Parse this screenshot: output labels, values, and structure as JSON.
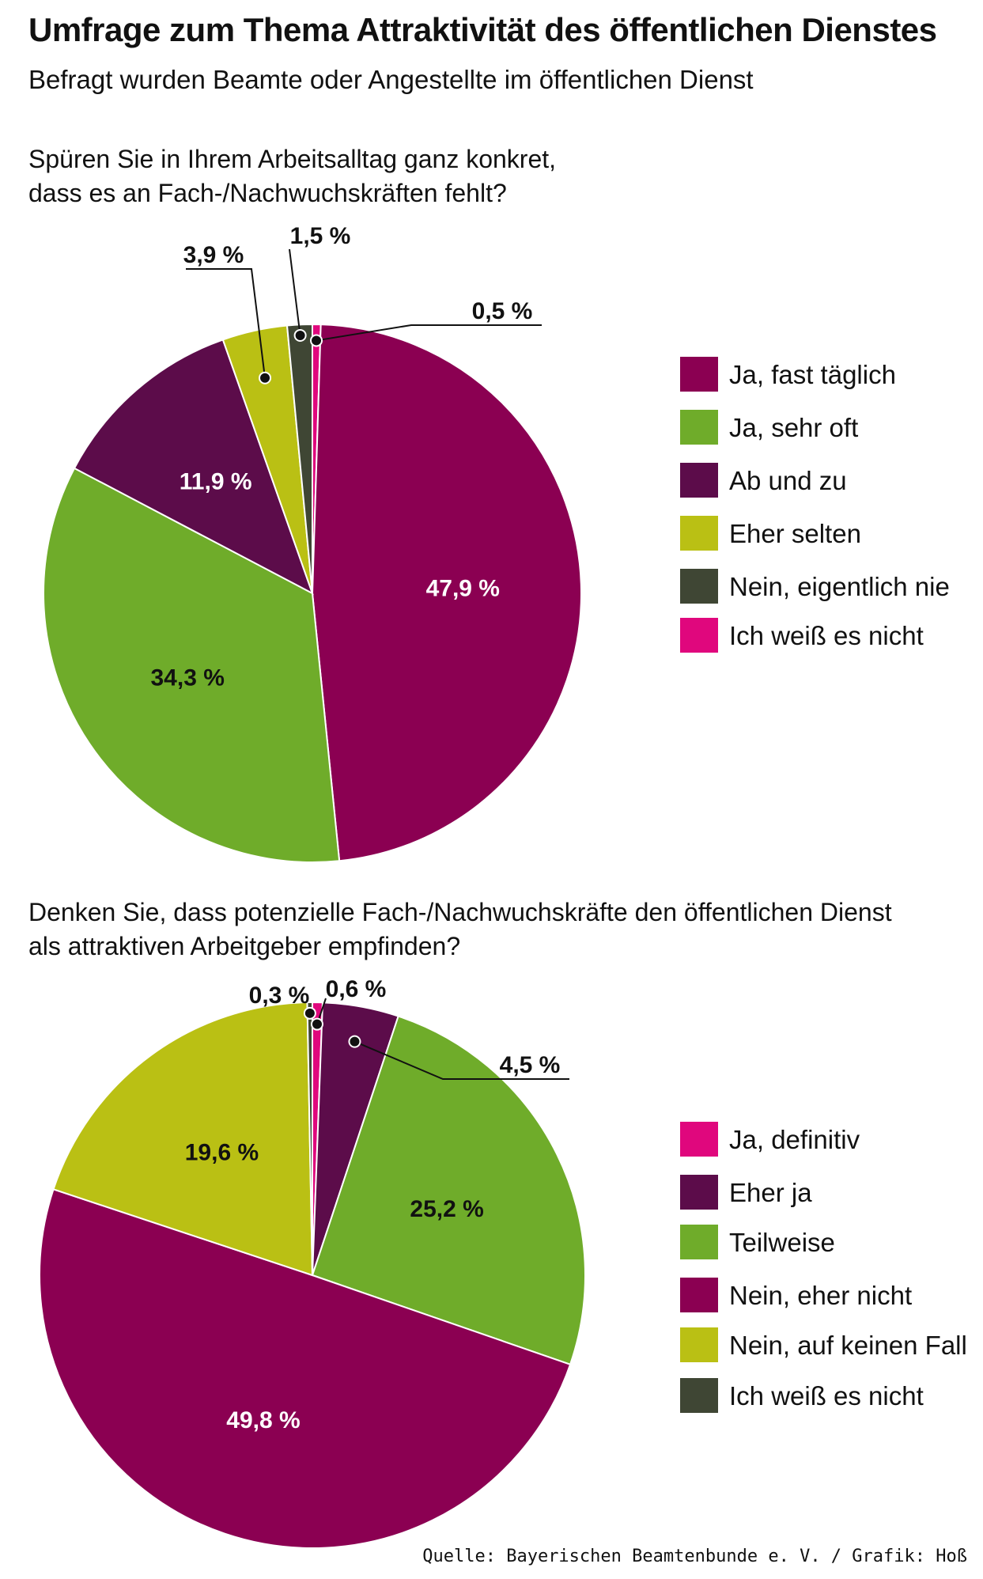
{
  "header": {
    "title": "Umfrage zum Thema Attraktivität des öffentlichen Dienstes",
    "subtitle": "Befragt wurden Beamte oder Angestellte im öffentlichen Dienst"
  },
  "chart_data": [
    {
      "type": "pie",
      "question_lines": [
        "Spüren Sie in Ihrem Arbeitsalltag ganz konkret,",
        "dass es an Fach-/Nachwuchskräften fehlt?"
      ],
      "legend": "right",
      "slices": [
        {
          "label": "Ja, fast täglich",
          "value": 47.9,
          "display": "47,9 %",
          "color": "#8b0052",
          "text_color": "#ffffff"
        },
        {
          "label": "Ja, sehr oft",
          "value": 34.3,
          "display": "34,3 %",
          "color": "#6fac2a",
          "text_color": "#111111"
        },
        {
          "label": "Ab und zu",
          "value": 11.9,
          "display": "11,9 %",
          "color": "#5c0c4a",
          "text_color": "#ffffff"
        },
        {
          "label": "Eher selten",
          "value": 3.9,
          "display": "3,9 %",
          "color": "#bac014",
          "text_color": "#111111"
        },
        {
          "label": "Nein, eigentlich nie",
          "value": 1.5,
          "display": "1,5 %",
          "color": "#3f4634",
          "text_color": "#111111"
        },
        {
          "label": "Ich weiß es nicht",
          "value": 0.5,
          "display": "0,5 %",
          "color": "#e0077d",
          "text_color": "#111111"
        }
      ]
    },
    {
      "type": "pie",
      "question_lines": [
        "Denken Sie, dass potenzielle Fach-/Nachwuchskräfte den öffentlichen Dienst",
        "als attraktiven Arbeitgeber empfinden?"
      ],
      "legend": "right",
      "slices": [
        {
          "label": "Ja, definitiv",
          "value": 0.6,
          "display": "0,6 %",
          "color": "#e0077d",
          "text_color": "#111111"
        },
        {
          "label": "Eher ja",
          "value": 4.5,
          "display": "4,5 %",
          "color": "#5c0c4a",
          "text_color": "#111111"
        },
        {
          "label": "Teilweise",
          "value": 25.2,
          "display": "25,2 %",
          "color": "#6fac2a",
          "text_color": "#111111"
        },
        {
          "label": "Nein, eher nicht",
          "value": 49.8,
          "display": "49,8 %",
          "color": "#8b0052",
          "text_color": "#ffffff"
        },
        {
          "label": "Nein, auf keinen Fall",
          "value": 19.6,
          "display": "19,6 %",
          "color": "#bac014",
          "text_color": "#111111"
        },
        {
          "label": "Ich weiß es nicht",
          "value": 0.3,
          "display": "0,3 %",
          "color": "#3f4634",
          "text_color": "#111111"
        }
      ]
    }
  ],
  "footer": {
    "source": "Quelle: Bayerischen Beamtenbunde e. V. / Grafik: Hoß"
  }
}
